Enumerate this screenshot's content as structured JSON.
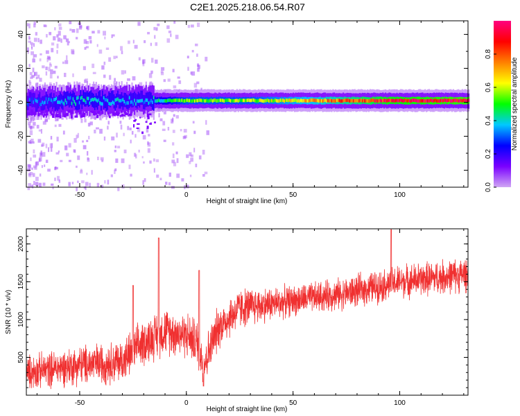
{
  "title": "C2E1.2025.218.06.54.R07",
  "chart_data": [
    {
      "type": "heatmap",
      "xlabel": "Height of straight line (km)",
      "ylabel": "Frequency (Hz)",
      "xlim": [
        -75,
        132
      ],
      "ylim": [
        -50,
        48
      ],
      "xticks": [
        -50,
        0,
        50,
        100
      ],
      "yticks": [
        -40,
        -20,
        0,
        20,
        40
      ],
      "colorbar": {
        "label": "Normalized spectral amplitude",
        "range": [
          0,
          1
        ],
        "ticks": [
          "0.0",
          "0.2",
          "0.4",
          "0.6",
          "0.8"
        ],
        "colormap": [
          "#d0a6f4",
          "#7a00ff",
          "#0000ff",
          "#00c8ff",
          "#00ff00",
          "#ffff00",
          "#ff8000",
          "#ff0000",
          "#ff0080"
        ]
      },
      "ridge": {
        "description": "dominant frequency band",
        "center_hz": [
          {
            "x": -75,
            "f": 0
          },
          {
            "x": -50,
            "f": 1
          },
          {
            "x": -30,
            "f": 1
          },
          {
            "x": -15,
            "f": 1
          },
          {
            "x": 0,
            "f": 1
          },
          {
            "x": 50,
            "f": 1
          },
          {
            "x": 100,
            "f": 1
          },
          {
            "x": 132,
            "f": 1
          }
        ],
        "peak_amplitude": [
          {
            "x": -75,
            "a": 0.3
          },
          {
            "x": -50,
            "a": 0.4
          },
          {
            "x": -20,
            "a": 0.35
          },
          {
            "x": 0,
            "a": 0.55
          },
          {
            "x": 30,
            "a": 0.55
          },
          {
            "x": 70,
            "a": 0.75
          },
          {
            "x": 95,
            "a": 0.9
          },
          {
            "x": 132,
            "a": 0.95
          }
        ]
      }
    },
    {
      "type": "line",
      "xlabel": "Height of straight line (km)",
      "ylabel": "SNR (10 * v/v)",
      "xlim": [
        -75,
        132
      ],
      "ylim": [
        0,
        2200
      ],
      "xticks": [
        -50,
        0,
        50,
        100
      ],
      "yticks": [
        500,
        1000,
        1500,
        2000
      ],
      "color": "#f03030",
      "series": [
        {
          "trend": [
            {
              "x": -75,
              "y": 300
            },
            {
              "x": -50,
              "y": 400
            },
            {
              "x": -30,
              "y": 450
            },
            {
              "x": -20,
              "y": 700
            },
            {
              "x": -10,
              "y": 850
            },
            {
              "x": 0,
              "y": 800
            },
            {
              "x": 5,
              "y": 700
            },
            {
              "x": 8,
              "y": 400
            },
            {
              "x": 15,
              "y": 900
            },
            {
              "x": 25,
              "y": 1150
            },
            {
              "x": 50,
              "y": 1250
            },
            {
              "x": 75,
              "y": 1350
            },
            {
              "x": 100,
              "y": 1500
            },
            {
              "x": 132,
              "y": 1600
            }
          ],
          "spread": [
            {
              "x": -75,
              "s": 220
            },
            {
              "x": -20,
              "s": 300
            },
            {
              "x": 10,
              "s": 300
            },
            {
              "x": 50,
              "s": 200
            },
            {
              "x": 132,
              "s": 230
            }
          ],
          "spikes": [
            {
              "x": -13,
              "y": 2080
            },
            {
              "x": 6,
              "y": 1650
            },
            {
              "x": 96,
              "y": 2190
            },
            {
              "x": -25,
              "y": 1450
            },
            {
              "x": 8,
              "y": 120
            }
          ]
        }
      ]
    }
  ]
}
